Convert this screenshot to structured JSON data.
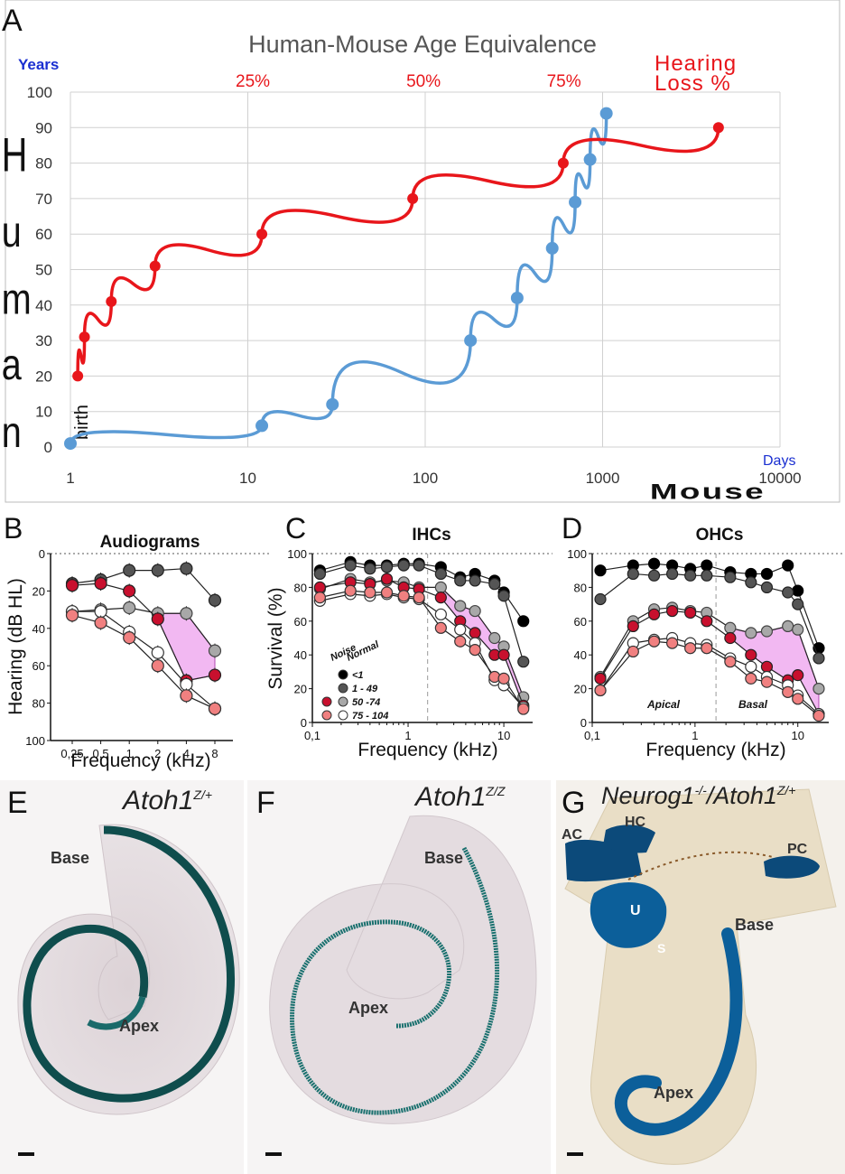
{
  "colors": {
    "human": "#5b9bd5",
    "hearing": "#e8161b",
    "years_label": "#1a2fd1",
    "band_fill": "#f2b8f2",
    "band_stroke": "#b047b0",
    "lgd_lt1": "#000000",
    "lgd_1_49": "#555555",
    "lgd_50_74": "#a8a8a8",
    "lgd_75_104": "#ffffff",
    "lgd_noise_dark": "#c8102e",
    "lgd_noise_light": "#f08080"
  },
  "panelA": {
    "letter": "A",
    "title": "Human-Mouse Age Equivalence",
    "years_label": "Years",
    "days_label": "Days",
    "mouse_label": "Mouse",
    "human_letters": [
      "H",
      "u",
      "m",
      "a",
      "n"
    ],
    "birth_label": "birth",
    "hearing_title_line1": "Hearing",
    "hearing_title_line2": "Loss %"
  },
  "panelB": {
    "letter": "B"
  },
  "panelC": {
    "letter": "C"
  },
  "panelD": {
    "letter": "D"
  },
  "panelE": {
    "letter": "E",
    "genotype": "Atoh1",
    "genotype_sup": "Z/+",
    "base": "Base",
    "apex": "Apex"
  },
  "panelF": {
    "letter": "F",
    "genotype": "Atoh1",
    "genotype_sup": "Z/Z",
    "base": "Base",
    "apex": "Apex"
  },
  "panelG": {
    "letter": "G",
    "genotype_part1": "Neurog1",
    "genotype_sup1": "-/-",
    "genotype_part2": "/Atoh1",
    "genotype_sup2": "Z/+",
    "ac": "AC",
    "hc": "HC",
    "pc": "PC",
    "u": "U",
    "sac": "S",
    "base": "Base",
    "apex": "Apex"
  },
  "chart_data": [
    {
      "type": "line",
      "title": "Human-Mouse Age Equivalence",
      "xlabel": "Mouse (Days)",
      "ylabel": "Human (Years)",
      "xscale": "log",
      "xlim": [
        1,
        10000
      ],
      "ylim": [
        0,
        100
      ],
      "x_ticks": [
        1,
        10,
        100,
        1000,
        10000
      ],
      "x_tick_labels": [
        "1",
        "10",
        "100",
        "1000",
        "10000"
      ],
      "y_ticks": [
        0,
        10,
        20,
        30,
        40,
        50,
        60,
        70,
        80,
        90,
        100
      ],
      "y_tick_labels": [
        "0",
        "10",
        "20",
        "30",
        "40",
        "50",
        "60",
        "70",
        "80",
        "90",
        "100"
      ],
      "top_ticks": [
        {
          "x": 12,
          "label": "25%"
        },
        {
          "x": 110,
          "label": "50%"
        },
        {
          "x": 680,
          "label": "75%"
        }
      ],
      "grid": true,
      "series": [
        {
          "name": "Human age (Years)",
          "x": [
            1,
            12,
            30,
            180,
            330,
            520,
            700,
            850,
            1050
          ],
          "y": [
            1,
            6,
            12,
            30,
            42,
            56,
            69,
            81,
            94
          ]
        },
        {
          "name": "Hearing Loss %",
          "x": [
            1.1,
            1.2,
            1.7,
            3,
            12,
            85,
            600,
            4500
          ],
          "y": [
            20,
            31,
            41,
            51,
            60,
            70,
            80,
            90
          ]
        }
      ]
    },
    {
      "type": "line",
      "title": "Audiograms",
      "xlabel": "Frequency (kHz)",
      "ylabel": "Hearing (dB HL)",
      "ylim": [
        0,
        100
      ],
      "y_inverted": true,
      "x_categories": [
        "0,25",
        "0,5",
        "1",
        "2",
        "4",
        "8"
      ],
      "y_tick_labels": [
        "0",
        "20",
        "40",
        "60",
        "80",
        "100"
      ],
      "series": [
        {
          "name": "1 - 49",
          "values": [
            16,
            14,
            9,
            9,
            8,
            25
          ]
        },
        {
          "name": "50 - 74",
          "values": [
            31,
            30,
            29,
            32,
            32,
            52
          ]
        },
        {
          "name": "50 - 74 noise",
          "values": [
            17,
            16,
            20,
            35,
            68,
            65
          ]
        },
        {
          "name": "75 - 104",
          "values": [
            31,
            31,
            42,
            53,
            70,
            83
          ]
        },
        {
          "name": "75 - 104 noise",
          "values": [
            33,
            37,
            45,
            60,
            76,
            83
          ]
        }
      ]
    },
    {
      "type": "line",
      "title": "IHCs",
      "xlabel": "Frequency (kHz)",
      "ylabel": "Survival (%)",
      "xscale": "log",
      "xlim": [
        0.1,
        20
      ],
      "ylim": [
        0,
        100
      ],
      "x_tick_labels": [
        "0,1",
        "1",
        "10"
      ],
      "y_tick_labels": [
        "0",
        "20",
        "40",
        "60",
        "80",
        "100"
      ],
      "legend_headers": [
        "Noise",
        "Normal"
      ],
      "legend": [
        "<1",
        "1 - 49",
        "50 -74",
        "75 - 104"
      ],
      "x": [
        0.12,
        0.25,
        0.4,
        0.6,
        0.9,
        1.3,
        2.2,
        3.5,
        5,
        8,
        10,
        16
      ],
      "series": [
        {
          "name": "<1",
          "values": [
            90,
            95,
            93,
            93,
            94,
            94,
            92,
            86,
            88,
            84,
            77,
            60
          ]
        },
        {
          "name": "1 - 49",
          "values": [
            88,
            93,
            91,
            92,
            93,
            93,
            88,
            84,
            84,
            82,
            75,
            36
          ]
        },
        {
          "name": "50 -74",
          "values": [
            79,
            85,
            83,
            84,
            83,
            80,
            80,
            69,
            66,
            50,
            45,
            15
          ]
        },
        {
          "name": "50 -74 noise",
          "values": [
            80,
            83,
            82,
            85,
            80,
            79,
            74,
            60,
            53,
            40,
            40,
            10
          ]
        },
        {
          "name": "75 - 104",
          "values": [
            72,
            76,
            75,
            76,
            74,
            73,
            64,
            55,
            47,
            25,
            22,
            9
          ]
        },
        {
          "name": "75 - 104 noise",
          "values": [
            74,
            78,
            77,
            77,
            75,
            74,
            56,
            48,
            43,
            27,
            26,
            8
          ]
        }
      ]
    },
    {
      "type": "line",
      "title": "OHCs",
      "xlabel": "Frequency (kHz)",
      "ylabel": "",
      "xscale": "log",
      "xlim": [
        0.1,
        20
      ],
      "ylim": [
        0,
        100
      ],
      "x_tick_labels": [
        "0,1",
        "1",
        "10"
      ],
      "y_tick_labels": [
        "0",
        "20",
        "40",
        "60",
        "80",
        "100"
      ],
      "region_labels": [
        "Apical",
        "Basal"
      ],
      "x": [
        0.12,
        0.25,
        0.4,
        0.6,
        0.9,
        1.3,
        2.2,
        3.5,
        5,
        8,
        10,
        16
      ],
      "series": [
        {
          "name": "<1",
          "values": [
            90,
            93,
            94,
            93,
            91,
            93,
            89,
            88,
            88,
            93,
            78,
            44
          ]
        },
        {
          "name": "1 - 49",
          "values": [
            73,
            88,
            87,
            88,
            87,
            87,
            86,
            83,
            80,
            77,
            70,
            38
          ]
        },
        {
          "name": "50 -74",
          "values": [
            27,
            60,
            67,
            68,
            66,
            65,
            56,
            53,
            54,
            57,
            55,
            20
          ]
        },
        {
          "name": "50 -74 noise",
          "values": [
            26,
            57,
            64,
            66,
            65,
            60,
            50,
            40,
            33,
            25,
            28,
            5
          ]
        },
        {
          "name": "75 - 104",
          "values": [
            19,
            47,
            49,
            50,
            47,
            46,
            38,
            33,
            27,
            22,
            16,
            5
          ]
        },
        {
          "name": "75 - 104 noise",
          "values": [
            19,
            42,
            48,
            47,
            44,
            44,
            36,
            26,
            24,
            18,
            14,
            4
          ]
        }
      ]
    }
  ]
}
